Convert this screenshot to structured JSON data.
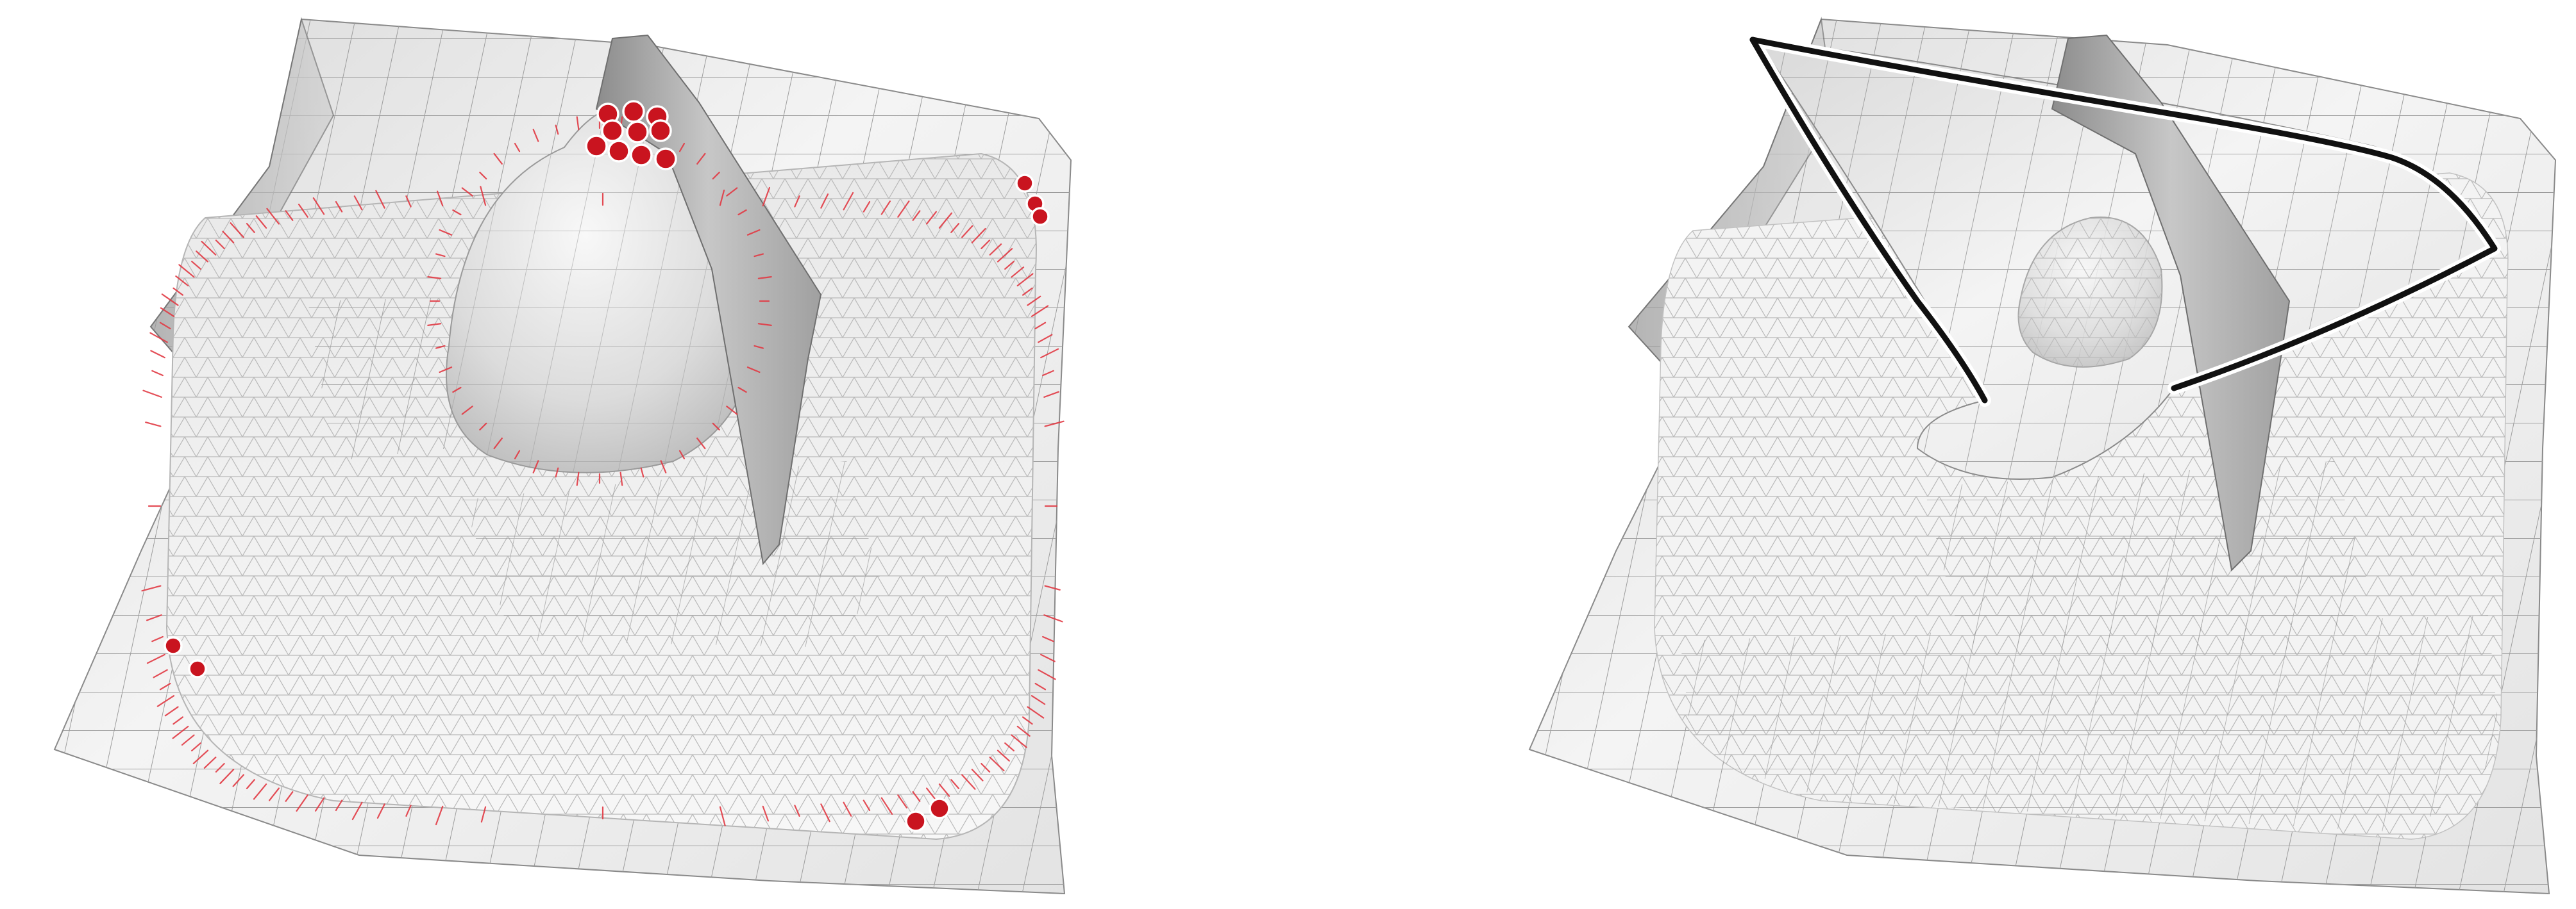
{
  "figure": {
    "panels": [
      {
        "name": "left-mesh-panel",
        "surface_color": "#f0f0f0",
        "grid_color": "#9b9b9b",
        "marker_color": "#c9141f",
        "normal_color": "#e23a44"
      },
      {
        "name": "right-mesh-panel",
        "surface_color": "#f0f0f0",
        "grid_color": "#9b9b9b",
        "curve_color": "#111111"
      }
    ]
  }
}
